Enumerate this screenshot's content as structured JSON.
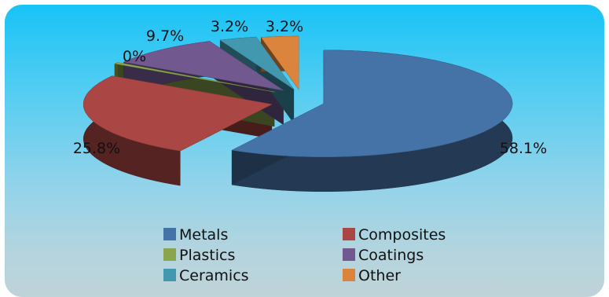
{
  "chart_data": {
    "type": "pie",
    "style": "3d-exploded",
    "categories": [
      "Metals",
      "Composites",
      "Plastics",
      "Coatings",
      "Ceramics",
      "Other"
    ],
    "values": [
      58.1,
      25.8,
      0,
      9.7,
      3.2,
      3.2
    ],
    "labels": [
      "58.1%",
      "25.8%",
      "0%",
      "9.7%",
      "3.2%",
      "3.2%"
    ],
    "colors": [
      "#4572a7",
      "#aa4643",
      "#89a54e",
      "#71588f",
      "#4198af",
      "#db843d"
    ],
    "legend_position": "bottom",
    "title": ""
  }
}
